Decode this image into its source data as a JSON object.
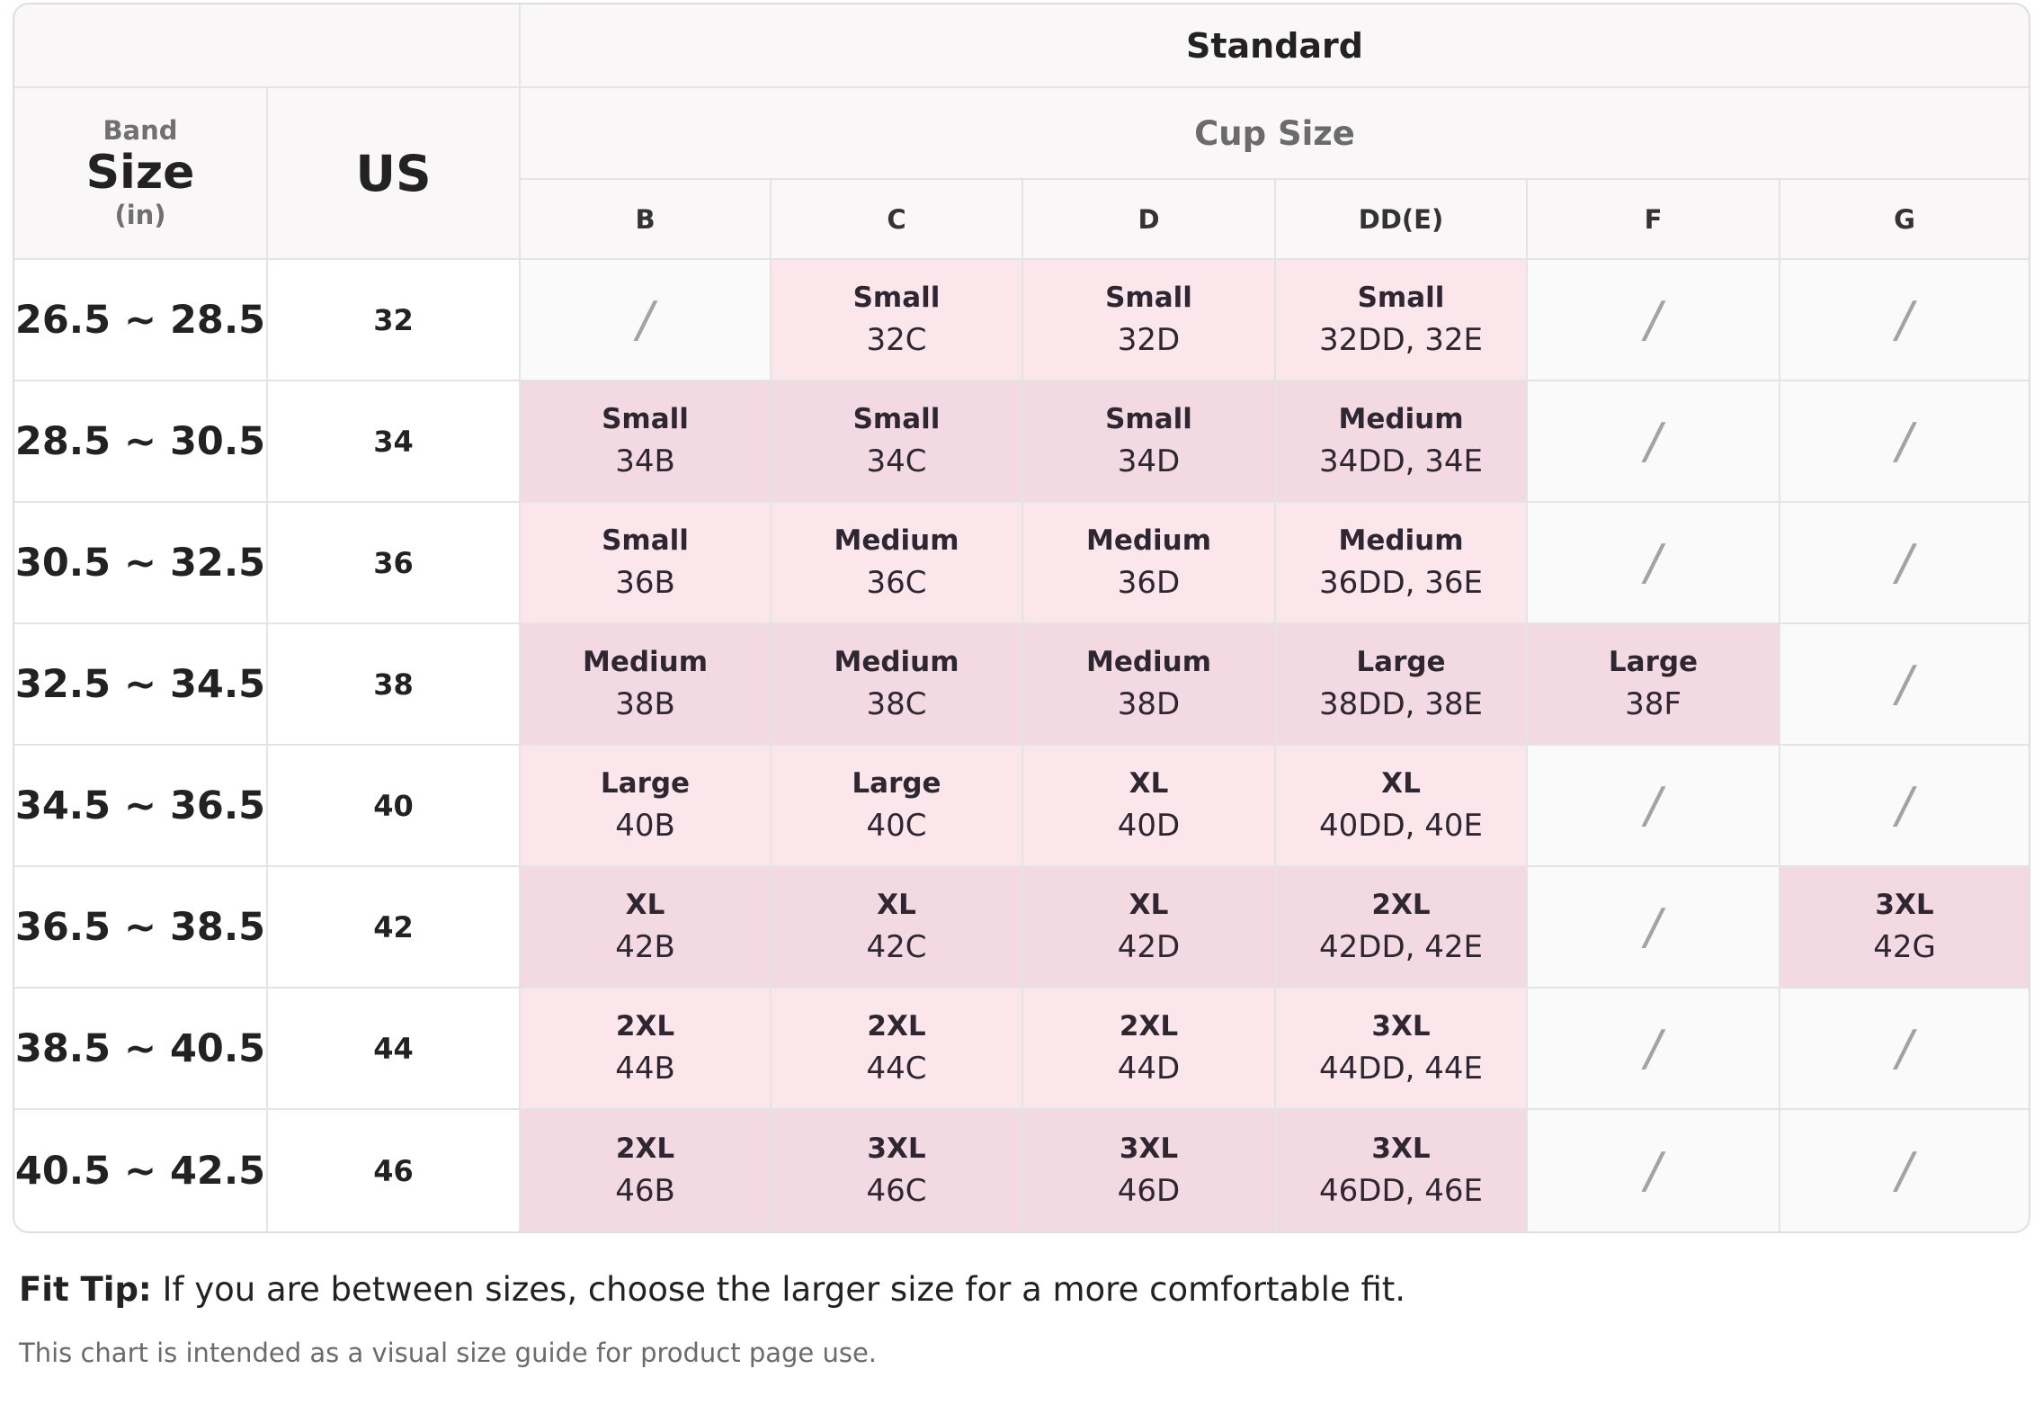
{
  "table": {
    "header": {
      "standard": "Standard",
      "band_label": "Band",
      "size_label": "Size",
      "unit_label": "(in)",
      "us_label": "US",
      "cup_size_label": "Cup Size",
      "cups": [
        "B",
        "C",
        "D",
        "DD(E)",
        "F",
        "G"
      ]
    },
    "rows": [
      {
        "band": "26.5 ~ 28.5",
        "us": "32",
        "cells": [
          "/",
          {
            "size": "Small",
            "code": "32C"
          },
          {
            "size": "Small",
            "code": "32D"
          },
          {
            "size": "Small",
            "code": "32DD, 32E"
          },
          "/",
          "/"
        ]
      },
      {
        "band": "28.5 ~ 30.5",
        "us": "34",
        "cells": [
          {
            "size": "Small",
            "code": "34B"
          },
          {
            "size": "Small",
            "code": "34C"
          },
          {
            "size": "Small",
            "code": "34D"
          },
          {
            "size": "Medium",
            "code": "34DD, 34E"
          },
          "/",
          "/"
        ]
      },
      {
        "band": "30.5 ~ 32.5",
        "us": "36",
        "cells": [
          {
            "size": "Small",
            "code": "36B"
          },
          {
            "size": "Medium",
            "code": "36C"
          },
          {
            "size": "Medium",
            "code": "36D"
          },
          {
            "size": "Medium",
            "code": "36DD, 36E"
          },
          "/",
          "/"
        ]
      },
      {
        "band": "32.5 ~ 34.5",
        "us": "38",
        "cells": [
          {
            "size": "Medium",
            "code": "38B"
          },
          {
            "size": "Medium",
            "code": "38C"
          },
          {
            "size": "Medium",
            "code": "38D"
          },
          {
            "size": "Large",
            "code": "38DD, 38E"
          },
          {
            "size": "Large",
            "code": "38F"
          },
          "/"
        ]
      },
      {
        "band": "34.5 ~ 36.5",
        "us": "40",
        "cells": [
          {
            "size": "Large",
            "code": "40B"
          },
          {
            "size": "Large",
            "code": "40C"
          },
          {
            "size": "XL",
            "code": "40D"
          },
          {
            "size": "XL",
            "code": "40DD, 40E"
          },
          "/",
          "/"
        ]
      },
      {
        "band": "36.5 ~ 38.5",
        "us": "42",
        "cells": [
          {
            "size": "XL",
            "code": "42B"
          },
          {
            "size": "XL",
            "code": "42C"
          },
          {
            "size": "XL",
            "code": "42D"
          },
          {
            "size": "2XL",
            "code": "42DD, 42E"
          },
          "/",
          {
            "size": "3XL",
            "code": "42G"
          }
        ]
      },
      {
        "band": "38.5 ~ 40.5",
        "us": "44",
        "cells": [
          {
            "size": "2XL",
            "code": "44B"
          },
          {
            "size": "2XL",
            "code": "44C"
          },
          {
            "size": "2XL",
            "code": "44D"
          },
          {
            "size": "3XL",
            "code": "44DD, 44E"
          },
          "/",
          "/"
        ]
      },
      {
        "band": "40.5 ~ 42.5",
        "us": "46",
        "cells": [
          {
            "size": "2XL",
            "code": "46B"
          },
          {
            "size": "3XL",
            "code": "46C"
          },
          {
            "size": "3XL",
            "code": "46D"
          },
          {
            "size": "3XL",
            "code": "46DD, 46E"
          },
          "/",
          "/"
        ]
      }
    ]
  },
  "fit_tip": {
    "label": "Fit Tip:",
    "text": "If you are between sizes, choose the larger size for a more comfortable fit."
  },
  "note": "This chart is intended as a visual size guide for product page use."
}
